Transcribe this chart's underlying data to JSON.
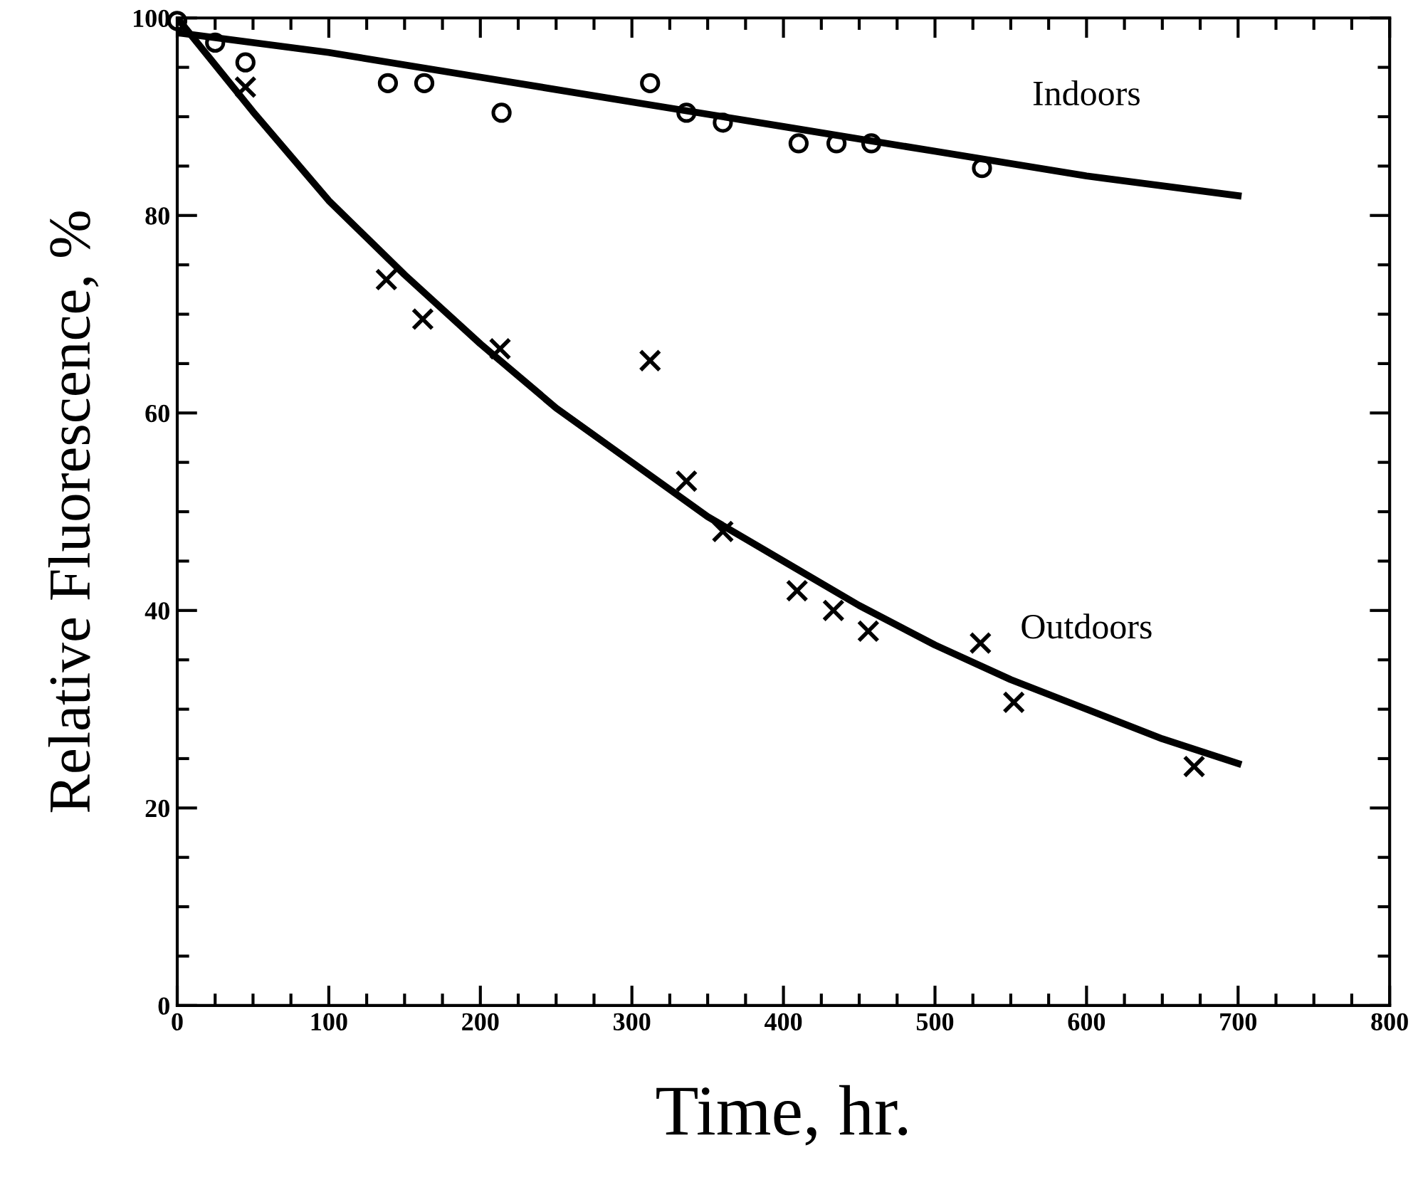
{
  "chart_data": {
    "type": "scatter",
    "xlabel": "Time, hr.",
    "ylabel": "Relative Fluorescence, %",
    "xlim": [
      0,
      800
    ],
    "ylim": [
      0,
      100
    ],
    "xticks": [
      0,
      100,
      200,
      300,
      400,
      500,
      600,
      700,
      800
    ],
    "yticks": [
      0,
      20,
      40,
      60,
      80,
      100
    ],
    "grid": false,
    "legend": false,
    "series": [
      {
        "marker": "circle",
        "color": "#000000",
        "x": [
          0,
          25,
          45,
          139,
          163,
          214,
          312,
          336,
          360,
          410,
          435,
          458,
          531
        ],
        "values": [
          99.7,
          97.5,
          95.5,
          93.4,
          93.4,
          90.4,
          93.4,
          90.4,
          89.4,
          87.3,
          87.3,
          87.3,
          84.8
        ]
      },
      {
        "marker": "cross",
        "color": "#000000",
        "x": [
          45,
          138,
          162,
          213,
          312,
          336,
          360,
          409,
          433,
          456,
          530,
          552,
          671
        ],
        "values": [
          93,
          73.5,
          69.5,
          66.5,
          65.3,
          53.1,
          48,
          42,
          40,
          37.9,
          36.7,
          30.7,
          24.2
        ]
      },
      {
        "type": "line",
        "name": "Indoors",
        "marker": "none",
        "line_style": "solid",
        "color": "#000000",
        "x": [
          0,
          100,
          200,
          300,
          400,
          500,
          600,
          700
        ],
        "values": [
          98.5,
          96.5,
          94,
          91.5,
          89,
          86.5,
          84,
          82
        ]
      },
      {
        "type": "line",
        "name": "Outdoors",
        "marker": "none",
        "line_style": "solid",
        "color": "#000000",
        "x": [
          0,
          50,
          100,
          150,
          200,
          250,
          300,
          350,
          400,
          450,
          500,
          550,
          600,
          650,
          700
        ],
        "values": [
          100,
          90.5,
          81.5,
          74,
          67,
          60.5,
          55,
          49.5,
          45,
          40.5,
          36.5,
          33,
          30,
          27,
          24.5
        ]
      }
    ]
  }
}
